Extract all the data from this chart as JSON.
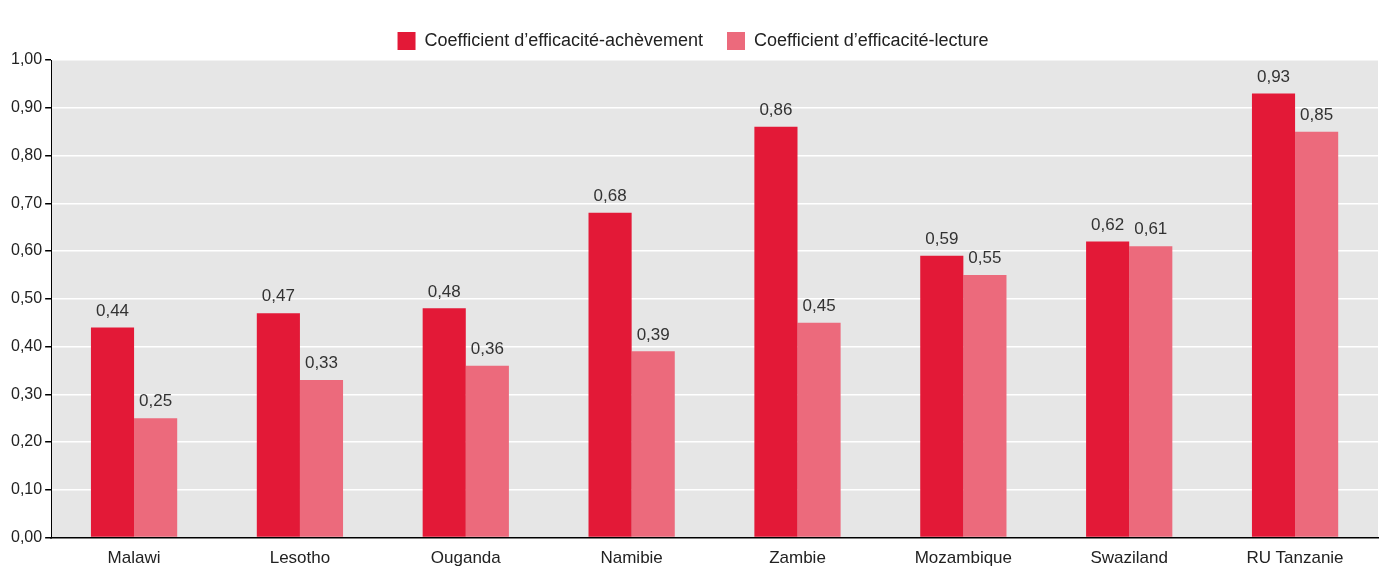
{
  "chart_data": {
    "type": "bar",
    "categories": [
      "Malawi",
      "Lesotho",
      "Ouganda",
      "Namibie",
      "Zambie",
      "Mozambique",
      "Swaziland",
      "RU Tanzanie"
    ],
    "series": [
      {
        "name": "Coefficient d’efficacité-achèvement",
        "color": "#e31937",
        "values": [
          0.44,
          0.47,
          0.48,
          0.68,
          0.86,
          0.59,
          0.62,
          0.93
        ],
        "value_labels": [
          "0,44",
          "0,47",
          "0,48",
          "0,68",
          "0,86",
          "0,59",
          "0,62",
          "0,93"
        ]
      },
      {
        "name": "Coefficient d’efficacité-lecture",
        "color": "#ec6a7c",
        "values": [
          0.25,
          0.33,
          0.36,
          0.39,
          0.45,
          0.55,
          0.61,
          0.85
        ],
        "value_labels": [
          "0,25",
          "0,33",
          "0,36",
          "0,39",
          "0,45",
          "0,55",
          "0,61",
          "0,85"
        ]
      }
    ],
    "ylim": [
      0,
      1
    ],
    "yticks": [
      {
        "value": 0,
        "label": "0,00"
      },
      {
        "value": 0.1,
        "label": "0,10"
      },
      {
        "value": 0.2,
        "label": "0,20"
      },
      {
        "value": 0.3,
        "label": "0,30"
      },
      {
        "value": 0.4,
        "label": "0,40"
      },
      {
        "value": 0.5,
        "label": "0,50"
      },
      {
        "value": 0.6,
        "label": "0,60"
      },
      {
        "value": 0.7,
        "label": "0,70"
      },
      {
        "value": 0.8,
        "label": "0,80"
      },
      {
        "value": 0.9,
        "label": "0,90"
      },
      {
        "value": 1,
        "label": "1,00"
      }
    ],
    "grid": "y",
    "legend": "top"
  }
}
